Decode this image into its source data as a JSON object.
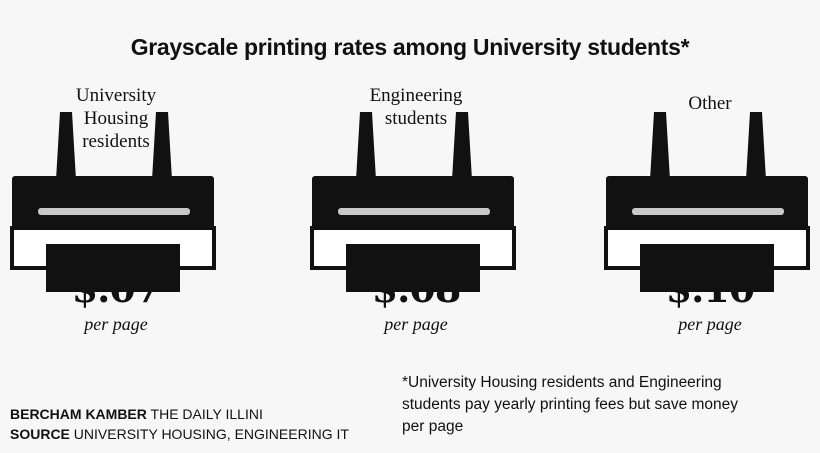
{
  "title": "Grayscale printing rates among University students*",
  "chart_data": {
    "type": "pictograph",
    "title": "Grayscale printing rates among University students*",
    "unit_label": "per page",
    "categories": [
      "University Housing residents",
      "Engineering students",
      "Other"
    ],
    "values": [
      0.07,
      0.08,
      0.1
    ],
    "value_labels": [
      "$.07",
      "$.08",
      "$.10"
    ]
  },
  "groups": [
    {
      "label": "University\nHousing\nresidents",
      "price": "$.07",
      "unit": "per page"
    },
    {
      "label": "Engineering\nstudents",
      "price": "$.08",
      "unit": "per page"
    },
    {
      "label": "Other",
      "price": "$.10",
      "unit": "per page"
    }
  ],
  "credits": {
    "author_key": "BERCHAM KAMBER",
    "author_value": "THE DAILY ILLINI",
    "source_key": "SOURCE",
    "source_value": "UNIVERSITY HOUSING, ENGINEERING IT"
  },
  "footnote": "*University Housing residents and Engineering students pay yearly printing fees but save money per page",
  "colors": {
    "background": "#f7f7f7",
    "ink": "#111111",
    "slot": "#c8c8c8"
  }
}
